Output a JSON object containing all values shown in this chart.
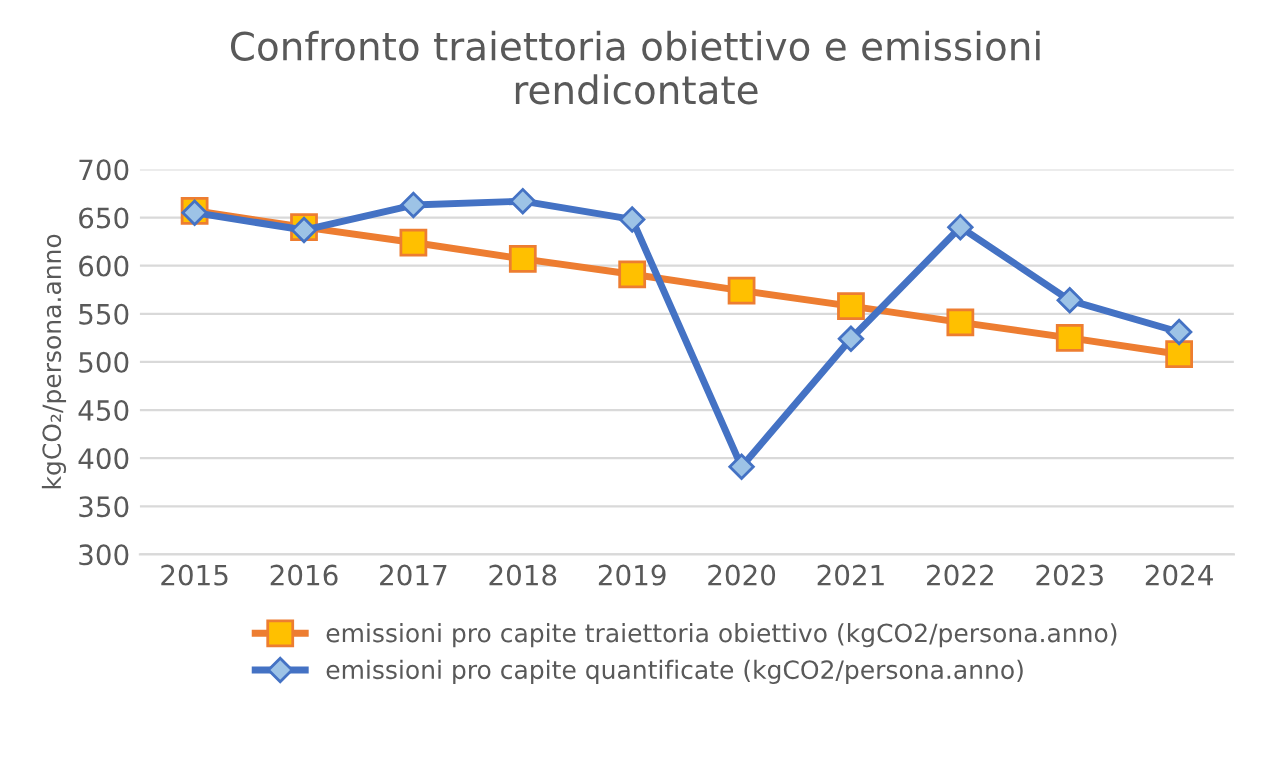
{
  "chart_data": {
    "type": "line",
    "title": "Confronto traiettoria obiettivo e emissioni\nrendicontate",
    "ylabel": "kgCO₂/persona.anno",
    "categories": [
      "2015",
      "2016",
      "2017",
      "2018",
      "2019",
      "2020",
      "2021",
      "2022",
      "2023",
      "2024"
    ],
    "series": [
      {
        "name": "emissioni pro capite traiettoria obiettivo (kgCO2/persona.anno)",
        "color": "#ed7d31",
        "marker": "square",
        "values": [
          657,
          640,
          624,
          607,
          591,
          574,
          558,
          541,
          525,
          508
        ]
      },
      {
        "name": "emissioni pro capite quantificate (kgCO2/persona.anno)",
        "color": "#4472c4",
        "marker": "diamond",
        "values": [
          655,
          637,
          663,
          667,
          648,
          391,
          524,
          640,
          564,
          531
        ]
      }
    ],
    "ylim": [
      300,
      700
    ],
    "yticks": [
      300,
      350,
      400,
      450,
      500,
      550,
      600,
      650,
      700
    ],
    "grid": "y",
    "legend": "bottom"
  }
}
